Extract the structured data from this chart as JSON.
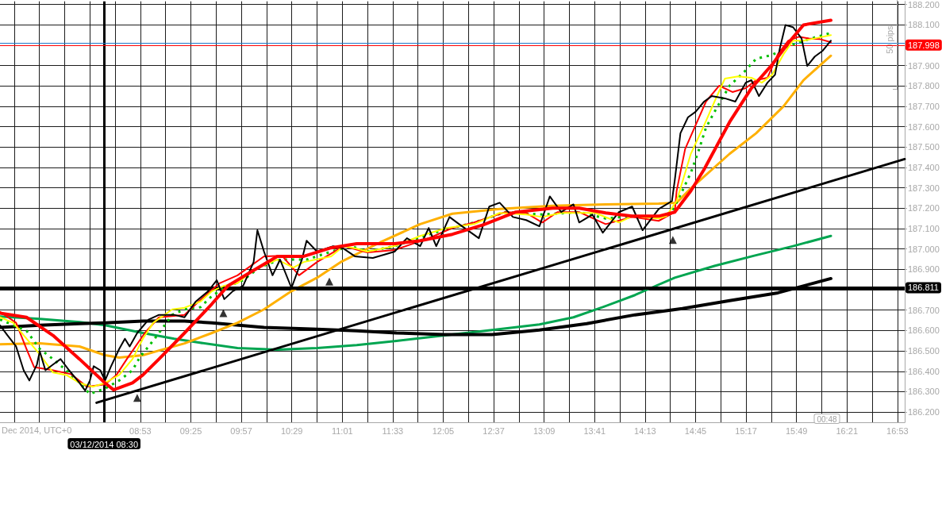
{
  "chart_data": {
    "type": "line",
    "xlim": [
      7.4,
      16.96
    ],
    "xticks": [
      {
        "value": 7.55,
        "label": null
      },
      {
        "value": 7.8167,
        "label": null
      },
      {
        "value": 8.0833,
        "label": null
      },
      {
        "value": 8.35,
        "label": null
      },
      {
        "value": 8.6167,
        "label": null
      },
      {
        "value": 8.8833,
        "label": "08:53"
      },
      {
        "value": 9.15,
        "label": null
      },
      {
        "value": 9.4167,
        "label": "09:25"
      },
      {
        "value": 9.6833,
        "label": null
      },
      {
        "value": 9.95,
        "label": "09:57"
      },
      {
        "value": 10.2167,
        "label": null
      },
      {
        "value": 10.4833,
        "label": "10:29"
      },
      {
        "value": 10.75,
        "label": null
      },
      {
        "value": 11.0167,
        "label": "11:01"
      },
      {
        "value": 11.2833,
        "label": null
      },
      {
        "value": 11.55,
        "label": "11:33"
      },
      {
        "value": 11.8167,
        "label": null
      },
      {
        "value": 12.0833,
        "label": "12:05"
      },
      {
        "value": 12.35,
        "label": null
      },
      {
        "value": 12.6167,
        "label": "12:37"
      },
      {
        "value": 12.8833,
        "label": null
      },
      {
        "value": 13.15,
        "label": "13:09"
      },
      {
        "value": 13.4167,
        "label": null
      },
      {
        "value": 13.6833,
        "label": "13:41"
      },
      {
        "value": 13.95,
        "label": null
      },
      {
        "value": 14.2167,
        "label": "14:13"
      },
      {
        "value": 14.4833,
        "label": null
      },
      {
        "value": 14.75,
        "label": "14:45"
      },
      {
        "value": 15.0167,
        "label": null
      },
      {
        "value": 15.2833,
        "label": "15:17"
      },
      {
        "value": 15.55,
        "label": null
      },
      {
        "value": 15.8167,
        "label": "15:49"
      },
      {
        "value": 16.0833,
        "label": null
      },
      {
        "value": 16.35,
        "label": "16:21"
      },
      {
        "value": 16.6167,
        "label": null
      },
      {
        "value": 16.8833,
        "label": "16:53"
      }
    ],
    "ylim": [
      186.15,
      188.215
    ],
    "yticks": [
      {
        "value": 186.2,
        "label": "186.200"
      },
      {
        "value": 186.3,
        "label": "186.300"
      },
      {
        "value": 186.4,
        "label": "186.400"
      },
      {
        "value": 186.5,
        "label": "186.500"
      },
      {
        "value": 186.6,
        "label": "186.600"
      },
      {
        "value": 186.7,
        "label": "186.700"
      },
      {
        "value": 186.8,
        "label": null
      },
      {
        "value": 186.9,
        "label": "186.900"
      },
      {
        "value": 187.0,
        "label": "187.000"
      },
      {
        "value": 187.1,
        "label": "187.100"
      },
      {
        "value": 187.2,
        "label": "187.200"
      },
      {
        "value": 187.3,
        "label": "187.300"
      },
      {
        "value": 187.4,
        "label": "187.400"
      },
      {
        "value": 187.5,
        "label": "187.500"
      },
      {
        "value": 187.6,
        "label": "187.600"
      },
      {
        "value": 187.7,
        "label": "187.700"
      },
      {
        "value": 187.8,
        "label": "187.800"
      },
      {
        "value": 187.9,
        "label": "187.900"
      },
      {
        "value": 188.0,
        "label": null
      },
      {
        "value": 188.1,
        "label": "188.100"
      },
      {
        "value": 188.2,
        "label": "188.200"
      }
    ],
    "grid": true,
    "annotations": [
      "Dec 2014, UTC+0",
      "50 pips",
      "00:48"
    ],
    "ref_lines": [
      {
        "axis": "y",
        "value": 186.811,
        "label": "186.811",
        "color": "#000000"
      },
      {
        "axis": "x",
        "value": 8.5,
        "label": "03/12/2014 08:30",
        "color": "#000000"
      },
      {
        "axis": "y",
        "value": 187.998,
        "label": "187.998",
        "color": "#ff0000"
      },
      {
        "axis": "y",
        "value": 188.014,
        "label": null,
        "color": "#1e78c8"
      }
    ],
    "series": [
      {
        "color": "#00a550",
        "x": [
          7.4,
          7.82,
          8.24,
          8.51,
          8.91,
          9.24,
          9.5,
          9.91,
          10.33,
          10.75,
          11.17,
          11.59,
          12.1,
          12.6,
          13.1,
          13.46,
          13.77,
          14.11,
          14.28,
          14.53,
          14.95,
          15.37,
          15.78,
          16.18
        ],
        "values": [
          186.669,
          186.657,
          186.642,
          186.626,
          186.588,
          186.56,
          186.541,
          186.514,
          186.506,
          186.514,
          186.529,
          186.549,
          186.576,
          186.603,
          186.63,
          186.665,
          186.715,
          186.774,
          186.809,
          186.859,
          186.917,
          186.967,
          187.014,
          187.064
        ]
      },
      {
        "color": "#000000",
        "x": [
          7.4,
          7.82,
          8.24,
          8.51,
          8.91,
          9.35,
          9.64,
          10.19,
          10.75,
          11.17,
          11.59,
          12.1,
          12.6,
          13.1,
          13.6,
          14.11,
          14.61,
          15.11,
          15.62,
          16.18
        ],
        "values": [
          186.615,
          186.626,
          186.634,
          186.638,
          186.646,
          186.646,
          186.638,
          186.615,
          186.607,
          186.599,
          186.588,
          186.58,
          186.58,
          186.603,
          186.634,
          186.677,
          186.708,
          186.747,
          186.785,
          186.855
        ]
      },
      {
        "color": "#ffb000",
        "x": [
          7.4,
          7.82,
          8.24,
          8.51,
          8.66,
          8.91,
          9.08,
          9.35,
          9.64,
          9.91,
          10.19,
          10.48,
          10.75,
          11.0,
          11.42,
          11.84,
          12.18,
          12.68,
          13.24,
          13.8,
          14.36,
          14.55,
          14.7,
          15.11,
          15.39,
          15.68,
          15.89,
          16.18
        ],
        "values": [
          186.533,
          186.537,
          186.522,
          186.479,
          186.467,
          186.479,
          186.502,
          186.537,
          186.588,
          186.638,
          186.704,
          186.793,
          186.859,
          186.936,
          187.033,
          187.122,
          187.173,
          187.196,
          187.212,
          187.219,
          187.223,
          187.227,
          187.297,
          187.467,
          187.568,
          187.7,
          187.828,
          187.948
        ]
      },
      {
        "color": "#000000",
        "x": [
          8.42,
          16.96
        ],
        "values": [
          186.246,
          187.441
        ]
      },
      {
        "color": "#00c000",
        "line_style": "dotted",
        "x": [
          7.4,
          7.68,
          7.82,
          7.96,
          8.1,
          8.24,
          8.35,
          8.51,
          8.66,
          8.8,
          8.88,
          8.97,
          9.08,
          9.22,
          9.35,
          9.52,
          9.64,
          9.77,
          9.97,
          10.14,
          10.36,
          10.64,
          10.9,
          11.11,
          11.28,
          11.57,
          11.99,
          12.41,
          12.74,
          13.13,
          13.52,
          13.8,
          14.08,
          14.36,
          14.5,
          14.61,
          14.7,
          14.78,
          14.86,
          14.95,
          15.11,
          15.26,
          15.39,
          15.56,
          15.73,
          15.95,
          16.18
        ],
        "values": [
          186.654,
          186.599,
          186.51,
          186.46,
          186.405,
          186.343,
          186.289,
          186.316,
          186.355,
          186.405,
          186.471,
          186.522,
          186.588,
          186.677,
          186.704,
          186.715,
          186.77,
          186.809,
          186.847,
          186.909,
          186.948,
          186.948,
          186.987,
          187.014,
          186.987,
          187.014,
          187.08,
          187.13,
          187.181,
          187.169,
          187.181,
          187.15,
          187.161,
          187.157,
          187.181,
          187.285,
          187.374,
          187.479,
          187.595,
          187.673,
          187.801,
          187.867,
          187.933,
          187.952,
          187.995,
          188.03,
          188.06
        ]
      },
      {
        "color": "#ff0000",
        "x": [
          7.4,
          7.57,
          7.68,
          7.76,
          7.96,
          8.15,
          8.32,
          8.51,
          8.63,
          8.74,
          8.93,
          9.08,
          9.35,
          9.5,
          9.72,
          9.91,
          10.19,
          10.38,
          10.56,
          10.75,
          11.03,
          11.28,
          11.57,
          11.93,
          12.18,
          12.41,
          12.74,
          12.96,
          13.13,
          13.29,
          13.52,
          13.8,
          14.08,
          14.36,
          14.53,
          14.55,
          14.64,
          14.75,
          14.86,
          15.0,
          15.14,
          15.28,
          15.39,
          15.51,
          15.62,
          15.73,
          15.84,
          15.95,
          16.06,
          16.18
        ],
        "values": [
          186.692,
          186.638,
          186.51,
          186.421,
          186.405,
          186.386,
          186.324,
          186.336,
          186.382,
          186.46,
          186.588,
          186.665,
          186.677,
          186.743,
          186.832,
          186.871,
          186.964,
          186.967,
          186.871,
          186.936,
          187.014,
          186.983,
          186.995,
          187.053,
          187.103,
          187.13,
          187.181,
          187.177,
          187.13,
          187.181,
          187.181,
          187.122,
          187.157,
          187.138,
          187.181,
          187.285,
          187.491,
          187.607,
          187.723,
          187.801,
          187.77,
          187.789,
          187.828,
          187.84,
          187.956,
          188.022,
          188.041,
          188.033,
          188.03,
          188.014
        ]
      },
      {
        "color": "#ffff00",
        "x": [
          7.4,
          7.54,
          7.68,
          7.82,
          7.96,
          8.1,
          8.24,
          8.38,
          8.51,
          8.66,
          8.8,
          8.91,
          9.02,
          9.22,
          9.35,
          9.52,
          9.64,
          9.77,
          9.91,
          10.08,
          10.33,
          10.5,
          10.61,
          10.9,
          11.03,
          11.17,
          11.28,
          11.57,
          11.84,
          12.12,
          12.41,
          12.68,
          12.96,
          13.13,
          13.33,
          13.69,
          13.94,
          14.08,
          14.36,
          14.44,
          14.55,
          14.7,
          14.84,
          14.95,
          15.06,
          15.2,
          15.34,
          15.45,
          15.56,
          15.68,
          15.78,
          15.89,
          16.01,
          16.18
        ],
        "values": [
          186.665,
          186.638,
          186.56,
          186.483,
          186.394,
          186.382,
          186.343,
          186.324,
          186.343,
          186.382,
          186.46,
          186.56,
          186.638,
          186.704,
          186.712,
          186.743,
          186.793,
          186.82,
          186.832,
          186.898,
          186.948,
          186.909,
          186.936,
          186.964,
          187.014,
          187.002,
          186.987,
          187.014,
          187.064,
          187.103,
          187.122,
          187.177,
          187.169,
          187.157,
          187.177,
          187.177,
          187.13,
          187.161,
          187.15,
          187.161,
          187.235,
          187.467,
          187.607,
          187.723,
          187.836,
          187.847,
          187.84,
          187.816,
          187.855,
          187.956,
          188.022,
          188.022,
          188.033,
          188.049
        ]
      },
      {
        "color": "#000000",
        "x": [
          7.4,
          7.48,
          7.57,
          7.65,
          7.71,
          7.79,
          7.82,
          7.88,
          7.96,
          8.04,
          8.13,
          8.24,
          8.3,
          8.35,
          8.39,
          8.46,
          8.51,
          8.57,
          8.66,
          8.72,
          8.77,
          8.85,
          8.97,
          9.08,
          9.24,
          9.35,
          9.47,
          9.6,
          9.69,
          9.77,
          9.86,
          9.97,
          10.08,
          10.12,
          10.19,
          10.28,
          10.36,
          10.48,
          10.59,
          10.64,
          10.75,
          10.92,
          11.03,
          11.15,
          11.34,
          11.57,
          11.7,
          11.84,
          11.93,
          12.01,
          12.15,
          12.26,
          12.46,
          12.57,
          12.68,
          12.82,
          12.96,
          13.1,
          13.21,
          13.33,
          13.46,
          13.52,
          13.66,
          13.77,
          13.94,
          14.08,
          14.19,
          14.36,
          14.5,
          14.53,
          14.59,
          14.67,
          14.75,
          14.84,
          14.92,
          15.06,
          15.17,
          15.28,
          15.34,
          15.42,
          15.51,
          15.59,
          15.64,
          15.7,
          15.78,
          15.87,
          15.93,
          16.01,
          16.09,
          16.18
        ],
        "values": [
          186.626,
          186.576,
          186.522,
          186.405,
          186.355,
          186.433,
          186.498,
          186.405,
          186.433,
          186.46,
          186.405,
          186.343,
          186.305,
          186.355,
          186.425,
          186.405,
          186.355,
          186.421,
          186.51,
          186.56,
          186.522,
          186.588,
          186.654,
          186.677,
          186.677,
          186.665,
          186.743,
          186.793,
          186.847,
          186.754,
          186.793,
          186.82,
          186.936,
          187.092,
          186.987,
          186.871,
          186.948,
          186.809,
          186.948,
          187.041,
          186.987,
          187.014,
          187.002,
          186.964,
          186.956,
          186.987,
          187.053,
          187.014,
          187.103,
          187.014,
          187.157,
          187.119,
          187.053,
          187.208,
          187.227,
          187.157,
          187.142,
          187.111,
          187.258,
          187.181,
          187.219,
          187.13,
          187.169,
          187.08,
          187.181,
          187.208,
          187.092,
          187.196,
          187.235,
          187.336,
          187.568,
          187.646,
          187.673,
          187.723,
          187.75,
          187.739,
          187.723,
          187.816,
          187.828,
          187.75,
          187.816,
          187.855,
          187.983,
          188.099,
          188.088,
          188.033,
          187.898,
          187.944,
          187.971,
          188.022
        ]
      },
      {
        "color": "#ff0000",
        "x": [
          7.4,
          7.68,
          7.96,
          8.24,
          8.51,
          8.6,
          8.8,
          8.91,
          9.08,
          9.35,
          9.64,
          9.81,
          10.06,
          10.33,
          10.61,
          10.9,
          11.17,
          11.57,
          11.84,
          12.18,
          12.51,
          12.85,
          13.24,
          13.52,
          13.8,
          14.08,
          14.36,
          14.53,
          14.7,
          14.84,
          15.11,
          15.34,
          15.56,
          15.73,
          15.89,
          16.18
        ],
        "values": [
          186.685,
          186.665,
          186.576,
          186.46,
          186.343,
          186.309,
          186.343,
          186.382,
          186.46,
          186.588,
          186.731,
          186.82,
          186.89,
          186.964,
          186.964,
          187.006,
          187.026,
          187.026,
          187.041,
          187.072,
          187.119,
          187.181,
          187.2,
          187.2,
          187.177,
          187.161,
          187.161,
          187.181,
          187.285,
          187.39,
          187.623,
          187.789,
          187.905,
          188.01,
          188.099,
          188.122
        ]
      },
      {
        "type": "scatter",
        "color": "#000000",
        "marker": "triangle",
        "x": [
          8.85,
          9.76,
          10.88,
          14.51
        ],
        "values": [
          186.27,
          186.685,
          186.84,
          187.045
        ]
      }
    ]
  }
}
